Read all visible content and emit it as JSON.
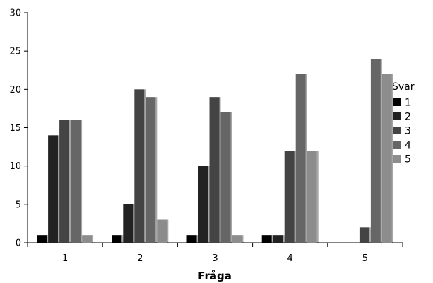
{
  "chart_data": {
    "type": "bar",
    "title": "",
    "xlabel": "Fråga",
    "ylabel": "",
    "categories": [
      "1",
      "2",
      "3",
      "4",
      "5"
    ],
    "ylim": [
      0,
      30
    ],
    "yticks": [
      0,
      5,
      10,
      15,
      20,
      25,
      30
    ],
    "legend": {
      "title": "Svar",
      "position": "right"
    },
    "grid": false,
    "series": [
      {
        "name": "1",
        "color": "#000000",
        "values": [
          1,
          1,
          1,
          1,
          0
        ]
      },
      {
        "name": "2",
        "color": "#222222",
        "values": [
          14,
          5,
          10,
          1,
          0
        ]
      },
      {
        "name": "3",
        "color": "#444444",
        "values": [
          16,
          20,
          19,
          12,
          2
        ]
      },
      {
        "name": "4",
        "color": "#666666",
        "values": [
          16,
          19,
          17,
          22,
          24
        ]
      },
      {
        "name": "5",
        "color": "#8c8c8c",
        "values": [
          1,
          3,
          1,
          12,
          22
        ]
      }
    ]
  }
}
